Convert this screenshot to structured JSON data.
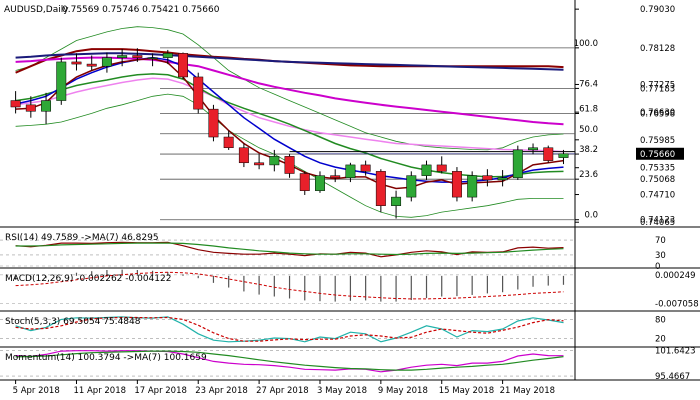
{
  "chart_data": {
    "type": "candlestick",
    "title": "AUDUSD,Daily",
    "ohlc_label": "0.75569 0.75746 0.75421 0.75660",
    "price_levels": [
      "0.79030",
      "0.78128",
      "0.77183",
      "0.77275",
      "0.76630",
      "0.76598",
      "0.75985",
      "0.75653",
      "0.75660",
      "0.75335",
      "0.75068",
      "0.74710",
      "0.74123",
      "0.74065"
    ],
    "price_axis": {
      "ylim": [
        0.74,
        0.7915
      ],
      "marker": "0.75660"
    },
    "fib": [
      {
        "label": "100.0",
        "value": 0.78128
      },
      {
        "label": "76.4",
        "value": 0.77183
      },
      {
        "label": "61.8",
        "value": 0.76598
      },
      {
        "label": "50.0",
        "value": 0.76126
      },
      {
        "label": "38.2",
        "value": 0.75653
      },
      {
        "label": "23.6",
        "value": 0.75068
      },
      {
        "label": "0.0",
        "value": 0.74123
      }
    ],
    "candles": [
      [
        0.769,
        0.7712,
        0.766,
        0.7675
      ],
      [
        0.768,
        0.77,
        0.765,
        0.7665
      ],
      [
        0.7665,
        0.7708,
        0.7635,
        0.769
      ],
      [
        0.769,
        0.779,
        0.768,
        0.778
      ],
      [
        0.778,
        0.78,
        0.776,
        0.7775
      ],
      [
        0.7775,
        0.7795,
        0.776,
        0.777
      ],
      [
        0.777,
        0.7802,
        0.7755,
        0.779
      ],
      [
        0.779,
        0.781,
        0.777,
        0.7795
      ],
      [
        0.7795,
        0.7812,
        0.778,
        0.779
      ],
      [
        0.779,
        0.78,
        0.777,
        0.779
      ],
      [
        0.779,
        0.7808,
        0.7775,
        0.78
      ],
      [
        0.78,
        0.7802,
        0.774,
        0.7745
      ],
      [
        0.7745,
        0.7755,
        0.766,
        0.767
      ],
      [
        0.767,
        0.768,
        0.7595,
        0.7605
      ],
      [
        0.7605,
        0.762,
        0.7575,
        0.758
      ],
      [
        0.758,
        0.759,
        0.7535,
        0.7545
      ],
      [
        0.7545,
        0.7565,
        0.753,
        0.754
      ],
      [
        0.754,
        0.7575,
        0.7525,
        0.756
      ],
      [
        0.756,
        0.7565,
        0.751,
        0.752
      ],
      [
        0.752,
        0.7525,
        0.747,
        0.748
      ],
      [
        0.748,
        0.7525,
        0.7475,
        0.7515
      ],
      [
        0.7515,
        0.753,
        0.75,
        0.751
      ],
      [
        0.751,
        0.7545,
        0.75,
        0.754
      ],
      [
        0.754,
        0.755,
        0.7515,
        0.7525
      ],
      [
        0.7525,
        0.753,
        0.743,
        0.7445
      ],
      [
        0.7445,
        0.748,
        0.7415,
        0.7465
      ],
      [
        0.7465,
        0.7525,
        0.7455,
        0.7515
      ],
      [
        0.7515,
        0.755,
        0.7505,
        0.754
      ],
      [
        0.754,
        0.756,
        0.752,
        0.7525
      ],
      [
        0.7525,
        0.7535,
        0.7455,
        0.7465
      ],
      [
        0.7465,
        0.7525,
        0.7455,
        0.7515
      ],
      [
        0.7515,
        0.753,
        0.749,
        0.7505
      ],
      [
        0.7505,
        0.7528,
        0.749,
        0.751
      ],
      [
        0.751,
        0.7585,
        0.7505,
        0.7575
      ],
      [
        0.7575,
        0.759,
        0.7565,
        0.758
      ],
      [
        0.758,
        0.7585,
        0.7545,
        0.755
      ],
      [
        0.7557,
        0.7575,
        0.7542,
        0.7566
      ]
    ],
    "moving_averages": [
      {
        "color": "#8b0000",
        "values": [
          0.7755,
          0.777,
          0.7785,
          0.7795,
          0.7805,
          0.781,
          0.781,
          0.781,
          0.7808,
          0.7805,
          0.7802,
          0.7798,
          0.7795,
          0.7792,
          0.779,
          0.7787,
          0.7785,
          0.7782,
          0.778,
          0.7778,
          0.7776,
          0.7774,
          0.7772,
          0.7771,
          0.777,
          0.777,
          0.777,
          0.777,
          0.777,
          0.777,
          0.777,
          0.777,
          0.777,
          0.777,
          0.777,
          0.777,
          0.7768
        ]
      },
      {
        "color": "#1a1a7a",
        "values": [
          0.779,
          0.7792,
          0.7795,
          0.7797,
          0.7798,
          0.7799,
          0.78,
          0.78,
          0.7799,
          0.7798,
          0.7796,
          0.7794,
          0.7792,
          0.779,
          0.7788,
          0.7786,
          0.7784,
          0.7782,
          0.778,
          0.7779,
          0.7778,
          0.7777,
          0.7776,
          0.7775,
          0.7774,
          0.7773,
          0.7772,
          0.7771,
          0.777,
          0.7769,
          0.7768,
          0.7767,
          0.7766,
          0.7765,
          0.7764,
          0.7763,
          0.7762
        ]
      },
      {
        "color": "#cc00cc",
        "values": [
          0.778,
          0.7782,
          0.7785,
          0.7787,
          0.7789,
          0.779,
          0.779,
          0.7789,
          0.7787,
          0.7785,
          0.778,
          0.7775,
          0.777,
          0.776,
          0.775,
          0.774,
          0.773,
          0.7722,
          0.7715,
          0.7708,
          0.7702,
          0.7695,
          0.769,
          0.7685,
          0.768,
          0.7676,
          0.7672,
          0.7668,
          0.7664,
          0.766,
          0.7656,
          0.7652,
          0.7648,
          0.7644,
          0.764,
          0.7637,
          0.7635
        ]
      },
      {
        "color": "#ee82ee",
        "values": [
          0.768,
          0.7685,
          0.769,
          0.77,
          0.771,
          0.7718,
          0.7725,
          0.7732,
          0.7738,
          0.7742,
          0.774,
          0.773,
          0.7715,
          0.77,
          0.768,
          0.7665,
          0.765,
          0.764,
          0.763,
          0.7622,
          0.7615,
          0.761,
          0.7605,
          0.76,
          0.7595,
          0.759,
          0.7588,
          0.7586,
          0.7584,
          0.7582,
          0.758,
          0.7578,
          0.7576,
          0.7575,
          0.7574,
          0.7573,
          0.7571
        ]
      },
      {
        "color": "#228b22",
        "values": [
          0.769,
          0.7695,
          0.7705,
          0.7715,
          0.7725,
          0.7732,
          0.7738,
          0.7745,
          0.775,
          0.7752,
          0.775,
          0.774,
          0.772,
          0.77,
          0.7685,
          0.7672,
          0.766,
          0.7648,
          0.7635,
          0.762,
          0.7605,
          0.759,
          0.7578,
          0.7568,
          0.7555,
          0.7545,
          0.7535,
          0.7528,
          0.7522,
          0.7518,
          0.7515,
          0.7512,
          0.7513,
          0.7518,
          0.7522,
          0.7524,
          0.7525
        ]
      },
      {
        "color": "#0000cd",
        "values": [
          0.7682,
          0.769,
          0.77,
          0.772,
          0.774,
          0.7755,
          0.7768,
          0.7778,
          0.7785,
          0.779,
          0.7785,
          0.777,
          0.774,
          0.771,
          0.768,
          0.765,
          0.7625,
          0.76,
          0.758,
          0.756,
          0.7545,
          0.7535,
          0.7528,
          0.7522,
          0.7515,
          0.751,
          0.7505,
          0.7502,
          0.75,
          0.75,
          0.7502,
          0.7505,
          0.751,
          0.752,
          0.7528,
          0.7532,
          0.7535
        ]
      },
      {
        "color": "#800000",
        "values": [
          0.767,
          0.7672,
          0.7685,
          0.772,
          0.7745,
          0.776,
          0.7772,
          0.778,
          0.7785,
          0.7788,
          0.7778,
          0.7745,
          0.77,
          0.7655,
          0.762,
          0.759,
          0.7568,
          0.7555,
          0.754,
          0.7522,
          0.7512,
          0.7508,
          0.7512,
          0.7512,
          0.7495,
          0.7485,
          0.7488,
          0.75,
          0.7505,
          0.7495,
          0.7498,
          0.75,
          0.7502,
          0.752,
          0.754,
          0.7545,
          0.755
        ]
      }
    ],
    "bollinger": {
      "color": "#228b22",
      "upper": [
        0.776,
        0.777,
        0.779,
        0.781,
        0.783,
        0.784,
        0.785,
        0.7858,
        0.7862,
        0.786,
        0.7855,
        0.7845,
        0.782,
        0.779,
        0.776,
        0.774,
        0.772,
        0.7705,
        0.769,
        0.7675,
        0.766,
        0.7645,
        0.763,
        0.7615,
        0.7605,
        0.7595,
        0.7588,
        0.7583,
        0.758,
        0.7578,
        0.7576,
        0.7575,
        0.758,
        0.7595,
        0.7605,
        0.761,
        0.7612
      ],
      "lower": [
        0.763,
        0.7632,
        0.7635,
        0.764,
        0.765,
        0.766,
        0.7672,
        0.768,
        0.769,
        0.77,
        0.7705,
        0.77,
        0.768,
        0.765,
        0.762,
        0.76,
        0.758,
        0.7565,
        0.7545,
        0.7525,
        0.7505,
        0.7485,
        0.7465,
        0.7445,
        0.743,
        0.742,
        0.7418,
        0.7422,
        0.743,
        0.7435,
        0.744,
        0.7445,
        0.7452,
        0.746,
        0.7462,
        0.7462,
        0.7462
      ]
    },
    "support_line": 0.7571,
    "resistance_line": 0.7566,
    "subwindows": [
      {
        "label": "RSI(14) 49.7589 ->MA(7) 46.8295",
        "axis": [
          "70",
          "30",
          "0"
        ],
        "ylim": [
          0,
          100
        ],
        "series": [
          {
            "color": "#8b0000",
            "values": [
              55,
              52,
              56,
              62,
              62,
              61,
              63,
              64,
              63,
              63,
              64,
              55,
              44,
              37,
              34,
              32,
              32,
              35,
              32,
              28,
              33,
              32,
              37,
              35,
              25,
              30,
              37,
              41,
              38,
              31,
              38,
              37,
              38,
              49,
              51,
              48,
              49.76
            ]
          },
          {
            "color": "#228b22",
            "values": [
              54,
              54,
              55,
              57,
              58,
              59,
              60,
              61,
              62,
              62,
              62,
              61,
              58,
              54,
              49,
              45,
              41,
              38,
              35,
              33,
              32,
              32,
              33,
              33,
              32,
              31,
              32,
              34,
              35,
              34,
              35,
              36,
              37,
              40,
              43,
              45,
              46.83
            ]
          }
        ]
      },
      {
        "label": "MACD(12,26,9) -0.002262 -0.004122",
        "axis": [
          "0.000249",
          "-0.007058"
        ],
        "ylim": [
          -0.0085,
          0.0015
        ],
        "histogram": [
          -0.001,
          -0.0009,
          -0.0006,
          0.0002,
          0.0008,
          0.0012,
          0.0015,
          0.0016,
          0.0015,
          0.0013,
          0.001,
          0.0004,
          -0.0006,
          -0.0018,
          -0.003,
          -0.004,
          -0.0048,
          -0.0053,
          -0.0058,
          -0.0063,
          -0.0065,
          -0.0066,
          -0.0064,
          -0.0063,
          -0.0066,
          -0.0066,
          -0.0062,
          -0.0057,
          -0.0053,
          -0.0052,
          -0.0049,
          -0.0045,
          -0.0042,
          -0.0035,
          -0.0028,
          -0.0025,
          -0.0023
        ],
        "signal_color": "#cc0000",
        "signal": [
          -0.0025,
          -0.0023,
          -0.002,
          -0.0015,
          -0.001,
          -0.0005,
          0.0,
          0.0003,
          0.0006,
          0.0008,
          0.0009,
          0.0008,
          0.0005,
          -0.0001,
          -0.0008,
          -0.0015,
          -0.0022,
          -0.0029,
          -0.0035,
          -0.004,
          -0.0045,
          -0.0049,
          -0.0052,
          -0.0054,
          -0.0056,
          -0.0058,
          -0.0059,
          -0.0059,
          -0.0058,
          -0.0057,
          -0.0055,
          -0.0053,
          -0.0051,
          -0.0048,
          -0.0045,
          -0.0043,
          -0.0041
        ]
      },
      {
        "label": "Stoch(5,3,3) 69.5054 75.4848",
        "axis": [
          "80",
          "20"
        ],
        "ylim": [
          0,
          100
        ],
        "series": [
          {
            "color": "#20b2aa",
            "values": [
              60,
              45,
              55,
              80,
              85,
              84,
              86,
              88,
              85,
              84,
              88,
              65,
              35,
              15,
              10,
              12,
              15,
              22,
              20,
              10,
              25,
              20,
              40,
              35,
              10,
              22,
              40,
              60,
              50,
              25,
              45,
              42,
              50,
              75,
              85,
              78,
              70
            ]
          },
          {
            "color": "#cc0000",
            "values": [
              55,
              50,
              52,
              60,
              72,
              82,
              85,
              86,
              86,
              85,
              86,
              80,
              62,
              38,
              20,
              12,
              12,
              16,
              19,
              17,
              18,
              18,
              28,
              32,
              28,
              22,
              24,
              40,
              50,
              45,
              40,
              37,
              46,
              56,
              70,
              79,
              75.5
            ]
          }
        ]
      },
      {
        "label": "Momentum(14) 100.3794 ->MA(7) 100.1659",
        "axis": [
          "101.6423",
          "95.4667"
        ],
        "ylim": [
          95.0,
          102.0
        ],
        "series": [
          {
            "color": "#cc00cc",
            "values": [
              100.4,
              100.2,
              100.7,
              101.5,
              101.6,
              101.6,
              101.5,
              101.6,
              101.6,
              101.5,
              101.4,
              100.8,
              99.9,
              99.0,
              98.6,
              98.3,
              98.2,
              98.0,
              97.6,
              97.1,
              97.0,
              96.9,
              97.2,
              97.1,
              96.5,
              96.9,
              97.6,
              98.1,
              98.3,
              98.0,
              98.6,
              98.6,
              99.0,
              100.3,
              100.8,
              100.4,
              100.38
            ]
          },
          {
            "color": "#228b22",
            "values": [
              100.1,
              100.2,
              100.3,
              100.6,
              100.9,
              101.1,
              101.2,
              101.3,
              101.4,
              101.5,
              101.5,
              101.4,
              101.2,
              100.8,
              100.4,
              99.9,
              99.4,
              98.9,
              98.5,
              98.1,
              97.8,
              97.5,
              97.3,
              97.2,
              97.0,
              96.9,
              96.9,
              97.1,
              97.4,
              97.6,
              97.8,
              98.1,
              98.3,
              98.8,
              99.3,
              99.7,
              100.17
            ]
          }
        ]
      }
    ],
    "date_labels": [
      "5 Apr 2018",
      "11 Apr 2018",
      "17 Apr 2018",
      "23 Apr 2018",
      "27 Apr 2018",
      "3 May 2018",
      "9 May 2018",
      "15 May 2018",
      "21 May 2018"
    ],
    "date_label_index": [
      0,
      4,
      8,
      12,
      16,
      20,
      24,
      28,
      32
    ],
    "colors": {
      "up": "#2ea836",
      "down": "#e8202a",
      "fib": "#555555",
      "marker": "#000000",
      "grid": "#c8c8c8"
    }
  }
}
